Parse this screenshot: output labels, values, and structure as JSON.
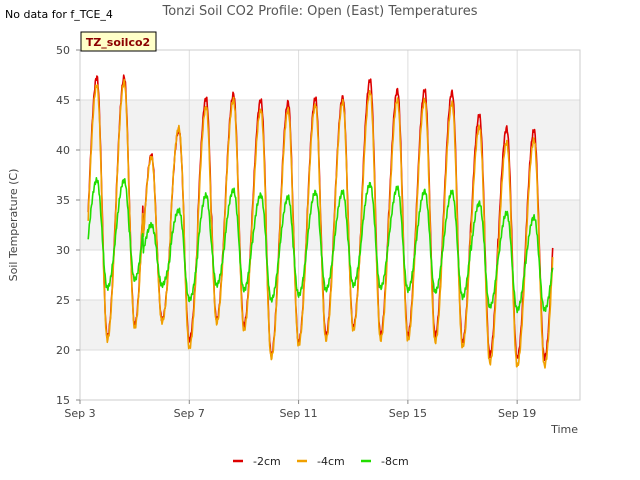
{
  "no_data_note": "No data for f_TCE_4",
  "site_badge": "TZ_soilco2",
  "chart_data": {
    "type": "line",
    "title": "Tonzi Soil CO2 Profile: Open (East) Temperatures",
    "xlabel": "Time",
    "ylabel": "Soil Temperature (C)",
    "ylim": [
      15,
      50
    ],
    "xlim": [
      3,
      21.3
    ],
    "yticks": [
      15,
      20,
      25,
      30,
      35,
      40,
      45,
      50
    ],
    "xticks": [
      {
        "value": 3,
        "label": "Sep 3"
      },
      {
        "value": 7,
        "label": "Sep 7"
      },
      {
        "value": 11,
        "label": "Sep 11"
      },
      {
        "value": 15,
        "label": "Sep 15"
      },
      {
        "value": 19,
        "label": "Sep 19"
      }
    ],
    "grid": true,
    "legend_position": "bottom-center",
    "x_start": 3.3,
    "x_end": 20.3,
    "peak_phase": 0.62,
    "series": [
      {
        "name": "-2cm",
        "color": "#dd0000",
        "daily_max": [
          47.3,
          47.3,
          39.5,
          42.0,
          45.2,
          45.6,
          45.0,
          44.8,
          45.2,
          45.3,
          47.0,
          46.0,
          46.0,
          45.8,
          43.5,
          42.2,
          42.0
        ],
        "daily_min": [
          21.3,
          21.3,
          22.5,
          23.0,
          21.0,
          23.0,
          22.5,
          19.5,
          20.8,
          21.5,
          22.3,
          21.5,
          21.5,
          21.5,
          20.8,
          19.5,
          19.2
        ]
      },
      {
        "name": "-4cm",
        "color": "#f0a000",
        "daily_max": [
          46.5,
          46.8,
          39.3,
          42.2,
          44.3,
          45.0,
          44.0,
          44.0,
          44.5,
          44.8,
          45.8,
          45.0,
          45.0,
          44.7,
          42.3,
          40.8,
          41.0
        ],
        "daily_min": [
          21.0,
          21.0,
          22.2,
          22.8,
          20.2,
          22.7,
          22.0,
          19.2,
          20.5,
          21.0,
          22.0,
          21.0,
          21.0,
          20.8,
          20.3,
          18.7,
          18.4
        ]
      },
      {
        "name": "-8cm",
        "color": "#22dd00",
        "daily_max": [
          37.0,
          37.0,
          32.5,
          34.0,
          35.5,
          36.0,
          35.5,
          35.3,
          35.8,
          35.8,
          36.6,
          36.2,
          35.9,
          35.8,
          34.7,
          33.7,
          33.3
        ],
        "daily_min": [
          26.0,
          26.2,
          27.0,
          26.5,
          25.0,
          26.5,
          26.0,
          25.0,
          25.5,
          26.0,
          26.5,
          26.2,
          26.0,
          25.8,
          25.3,
          24.3,
          24.0
        ]
      }
    ]
  }
}
